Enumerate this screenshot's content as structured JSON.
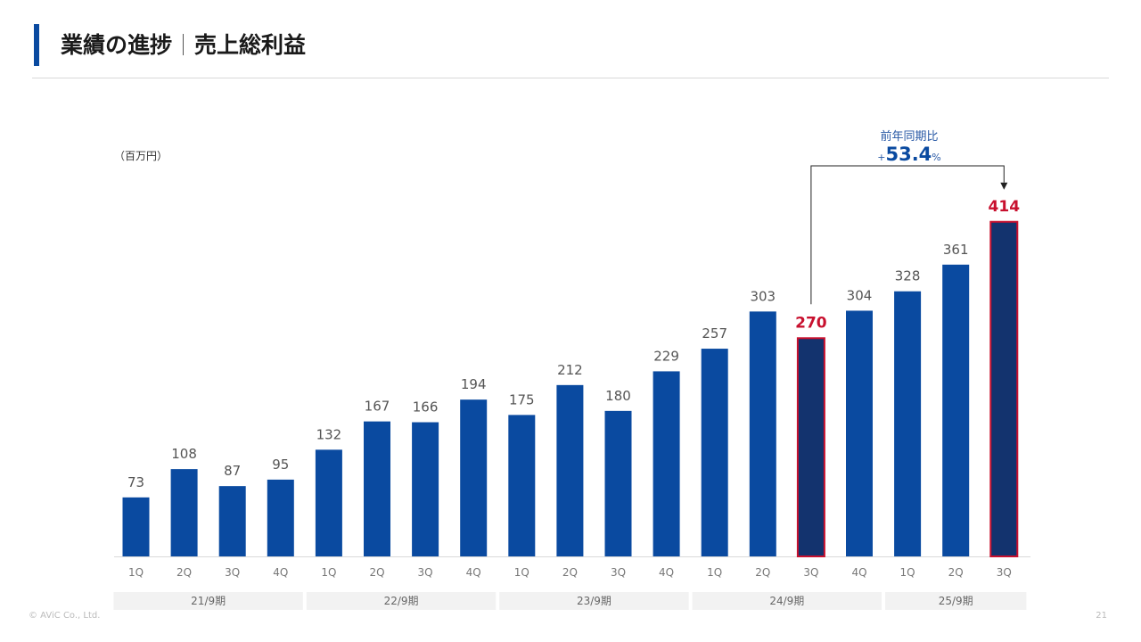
{
  "header": {
    "title_main": "業績の進捗",
    "title_sub": "売上総利益"
  },
  "unit_label": "（百万円）",
  "annotation": {
    "label": "前年同期比",
    "prefix": "+",
    "value": "53.4",
    "suffix": "%"
  },
  "footer": {
    "copyright": "© AViC Co., Ltd.",
    "page_number": "21"
  },
  "colors": {
    "bar": "#0a4aa0",
    "highlight_fill": "#13336e",
    "highlight_border": "#c8102e",
    "highlight_text": "#c8102e"
  },
  "chart_data": {
    "type": "bar",
    "categories": [
      "1Q",
      "2Q",
      "3Q",
      "4Q",
      "1Q",
      "2Q",
      "3Q",
      "4Q",
      "1Q",
      "2Q",
      "3Q",
      "4Q",
      "1Q",
      "2Q",
      "3Q",
      "4Q",
      "1Q",
      "2Q",
      "3Q"
    ],
    "values": [
      73,
      108,
      87,
      95,
      132,
      167,
      166,
      194,
      175,
      212,
      180,
      229,
      257,
      303,
      270,
      304,
      328,
      361,
      414
    ],
    "highlighted_indices": [
      14,
      18
    ],
    "groups": [
      {
        "label": "21/9期",
        "count": 4
      },
      {
        "label": "22/9期",
        "count": 4
      },
      {
        "label": "23/9期",
        "count": 4
      },
      {
        "label": "24/9期",
        "count": 4
      },
      {
        "label": "25/9期",
        "count": 3
      }
    ],
    "ylim": [
      0,
      440
    ],
    "grid": false,
    "legend": "none"
  }
}
